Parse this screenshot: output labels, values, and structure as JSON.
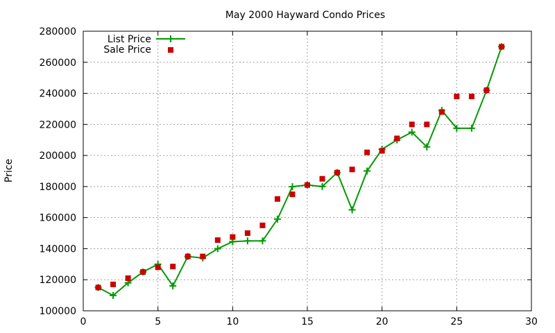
{
  "chart_data": {
    "type": "line",
    "title": "May 2000 Hayward Condo Prices",
    "xlabel": "",
    "ylabel": "Price",
    "xlim": [
      0,
      30
    ],
    "ylim": [
      100000,
      280000
    ],
    "x_ticks": [
      "0",
      "5",
      "10",
      "15",
      "20",
      "25",
      "30"
    ],
    "y_ticks": [
      "100000",
      "120000",
      "140000",
      "160000",
      "180000",
      "200000",
      "220000",
      "240000",
      "260000",
      "280000"
    ],
    "x_tick_values": [
      0,
      5,
      10,
      15,
      20,
      25,
      30
    ],
    "y_tick_values": [
      100000,
      120000,
      140000,
      160000,
      180000,
      200000,
      220000,
      240000,
      260000,
      280000
    ],
    "grid": true,
    "legend_position": "top-left",
    "x": [
      1,
      2,
      3,
      4,
      5,
      6,
      7,
      8,
      9,
      10,
      11,
      12,
      13,
      14,
      15,
      16,
      17,
      18,
      19,
      20,
      21,
      22,
      23,
      24,
      25,
      26,
      27,
      28
    ],
    "series": [
      {
        "name": "List Price",
        "style": "line-with-plus",
        "color": "#009900",
        "values": [
          115000,
          109900,
          118000,
          125000,
          130000,
          116000,
          135000,
          134000,
          140000,
          144500,
          145000,
          145000,
          159000,
          179900,
          181000,
          180000,
          189000,
          165000,
          190000,
          204000,
          210000,
          215000,
          205500,
          229000,
          217500,
          217500,
          242000,
          270000
        ]
      },
      {
        "name": "Sale Price",
        "style": "square-markers",
        "color": "#cc0000",
        "values": [
          115000,
          117000,
          121000,
          125000,
          128000,
          128500,
          135000,
          135000,
          145500,
          147500,
          150000,
          155000,
          172000,
          175000,
          181000,
          185000,
          189000,
          191000,
          202000,
          203000,
          211000,
          220000,
          220000,
          228000,
          238000,
          238000,
          242000,
          270000
        ]
      }
    ]
  }
}
